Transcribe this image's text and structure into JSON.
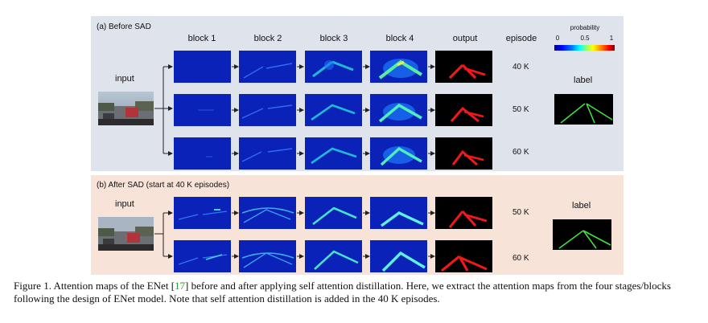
{
  "figure": {
    "panel_a": {
      "title": "(a) Before SAD",
      "columns": [
        "block 1",
        "block 2",
        "block 3",
        "block 4",
        "output",
        "episode"
      ],
      "input_label": "input",
      "label_text": "label",
      "episodes": [
        "40 K",
        "50 K",
        "60 K"
      ]
    },
    "panel_b": {
      "title": "(b) After SAD (start at 40 K episodes)",
      "input_label": "input",
      "label_text": "label",
      "episodes": [
        "50 K",
        "60 K"
      ]
    },
    "colorbar": {
      "title": "probability",
      "ticks": [
        "0",
        "0.5",
        "1"
      ]
    }
  },
  "caption": {
    "before_ref": "Figure 1. Attention maps of the ENet [",
    "ref": "17",
    "after_ref": "] before and after applying self attention distillation. Here, we extract the attention maps from the four stages/blocks following the design of ENet model. Note that self attention distillation is added in the 40 K episodes."
  }
}
